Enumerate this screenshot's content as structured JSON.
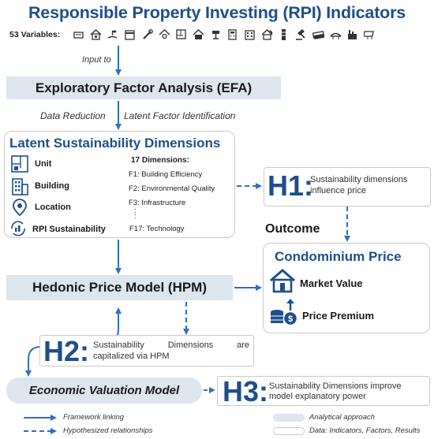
{
  "title": "Responsible Property Investing (RPI) Indicators",
  "variables_label": "53 Variables:",
  "variable_icons": [
    "cash-register-icon",
    "house-gear-icon",
    "hand-plant-icon",
    "storefront-icon",
    "tools-icon",
    "house-search-icon",
    "floorplan-icon",
    "house-icon",
    "lamp-icon",
    "calculator-icon",
    "building-icon",
    "house-hammer-icon",
    "tower-icon",
    "gavel-icon",
    "money-stack-icon",
    "bridge-icon",
    "factory-icon",
    "solar-panel-icon"
  ],
  "input_to": "Input to",
  "efa": "Exploratory Factor Analysis (EFA)",
  "data_reduction": "Data Reduction",
  "latent_factor_identification": "Latent Factor Identification",
  "latent": {
    "title": "Latent Sustainability Dimensions",
    "items": [
      "Unit",
      "Building",
      "Location",
      "RPI Sustainability"
    ],
    "dimensions_title": "17 Dimensions:",
    "dimensions": [
      "F1: Building Efficiency",
      "F2: Environmental Quality",
      "F3: Infrastructure",
      "F17: Technology"
    ],
    "ellipsis": ":"
  },
  "h1": {
    "label": "H1:",
    "text_1": "Sustainability dimensions",
    "text_2": "influence price"
  },
  "outcome": "Outcome",
  "condo": {
    "title": "Condominium Price",
    "market_value": "Market Value",
    "price_premium": "Price Premium"
  },
  "hpm": "Hedonic Price Model (HPM)",
  "h2": {
    "label": "H2:",
    "text_1": "Sustainability Dimensions are",
    "text_2": "capitalized via HPM"
  },
  "evm": "Economic Valuation Model",
  "h3": {
    "label": "H3:",
    "text_1": "Sustainability Dimensions improve",
    "text_2": "model explanatory power"
  },
  "legend": {
    "framework_linking": "Framework linking",
    "hypothesized": "Hypothesized relationships",
    "analytical": "Analytical approach",
    "data": "Data: Indicators, Factors, Results"
  },
  "colors": {
    "accent": "#1f4e8c",
    "arrow": "#2f6fc0",
    "process_fill": "#dde5ee",
    "box_border": "#c9c9c9"
  }
}
